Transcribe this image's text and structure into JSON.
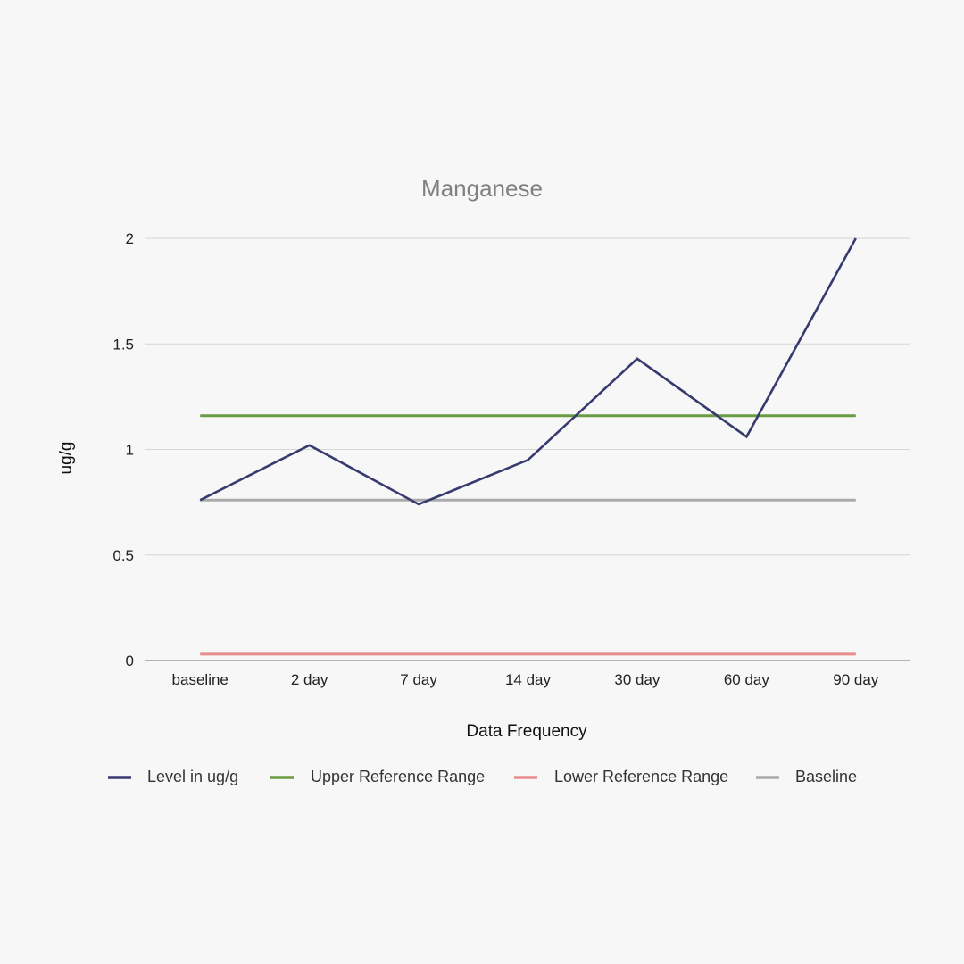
{
  "chart_data": {
    "type": "line",
    "title": "Manganese",
    "xlabel": "Data Frequency",
    "ylabel": "ug/g",
    "categories": [
      "baseline",
      "2 day",
      "7 day",
      "14 day",
      "30 day",
      "60 day",
      "90 day"
    ],
    "ylim": [
      0,
      2
    ],
    "yticks": [
      0,
      0.5,
      1,
      1.5,
      2
    ],
    "ytick_labels": [
      "0",
      "0.5",
      "1",
      "1.5",
      "2"
    ],
    "grid": true,
    "legend_position": "bottom",
    "series": [
      {
        "name": "Level in ug/g",
        "color": "#373a6e",
        "values": [
          0.76,
          1.02,
          0.74,
          0.95,
          1.43,
          1.06,
          2.0
        ]
      },
      {
        "name": "Upper Reference Range",
        "color": "#6a9c44",
        "values": [
          1.16,
          1.16,
          1.16,
          1.16,
          1.16,
          1.16,
          1.16
        ]
      },
      {
        "name": "Lower Reference Range",
        "color": "#e88d8d",
        "values": [
          0.03,
          0.03,
          0.03,
          0.03,
          0.03,
          0.03,
          0.03
        ]
      },
      {
        "name": "Baseline",
        "color": "#aaaaaa",
        "values": [
          0.76,
          0.76,
          0.76,
          0.76,
          0.76,
          0.76,
          0.76
        ]
      }
    ]
  }
}
